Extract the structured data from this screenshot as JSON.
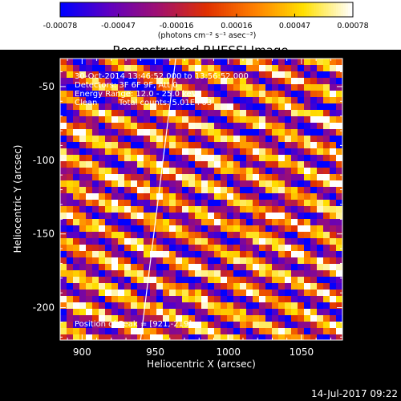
{
  "chart_data": {
    "type": "heatmap",
    "title": "Reconstructed RHESSI Image",
    "xlabel": "Heliocentric X (arcsec)",
    "ylabel": "Heliocentric Y (arcsec)",
    "xlim": [
      885,
      1078
    ],
    "ylim": [
      -222,
      -31
    ],
    "xticks": [
      "900",
      "950",
      "1000",
      "1050"
    ],
    "xtick_values": [
      900,
      950,
      1000,
      1050
    ],
    "yticks": [
      "-50",
      "-100",
      "-150",
      "-200"
    ],
    "ytick_values": [
      -50,
      -100,
      -150,
      -200
    ],
    "colorbar": {
      "min": -0.00078,
      "max": 0.00078,
      "ticks": [
        "-0.00078",
        "-0.00047",
        "-0.00016",
        "0.00016",
        "0.00047",
        "0.00078"
      ],
      "tick_values": [
        -0.00078,
        -0.00047,
        -0.00016,
        0.00016,
        0.00047,
        0.00078
      ],
      "units_text": "(photons cm⁻² s⁻¹ asec⁻²)",
      "colormap": [
        "#0000ff",
        "#6000c0",
        "#a01070",
        "#e03000",
        "#ff8000",
        "#ffe000",
        "#ffffff"
      ]
    },
    "annotations": [
      "30-Oct-2014 13:46:52.000 to 13:56:52.000",
      "Detectors: 3F 6F 9F, Att 0",
      "Energy Range: 12.0 - 25.0 keV",
      "Clean",
      "Total counts: 5.01E+03"
    ],
    "peak_label": "Position of Peak = [921,-219]",
    "limb_line": {
      "x": [
        940,
        964
      ],
      "y": [
        -222,
        -31
      ],
      "color": "#ffffff"
    },
    "pattern": "diagonal stripes descending left-to-right"
  },
  "footer": {
    "date": "14-Jul-2017 09:22"
  }
}
